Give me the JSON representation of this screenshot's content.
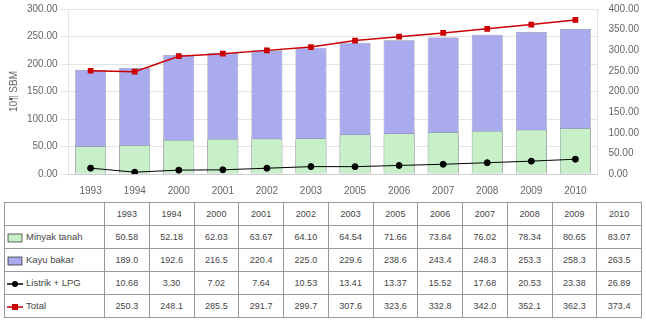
{
  "chart_data": {
    "type": "bar",
    "categories": [
      "1993",
      "1994",
      "2000",
      "2001",
      "2002",
      "2003",
      "2005",
      "2006",
      "2007",
      "2008",
      "2009",
      "2010"
    ],
    "y_label": "10¶ SBM",
    "ylim": [
      0,
      300
    ],
    "yticks": [
      {
        "value": 0,
        "label": "0.00"
      },
      {
        "value": 50,
        "label": "50.00"
      },
      {
        "value": 100,
        "label": "100.00"
      },
      {
        "value": 150,
        "label": "150.00"
      },
      {
        "value": 200,
        "label": "200.00"
      },
      {
        "value": 250,
        "label": "250.00"
      },
      {
        "value": 300,
        "label": "300.00"
      }
    ],
    "y2lim": [
      0,
      400
    ],
    "y2ticks": [
      {
        "value": 0,
        "label": "0.00"
      },
      {
        "value": 50,
        "label": "50.00"
      },
      {
        "value": 100,
        "label": "100.00"
      },
      {
        "value": 150,
        "label": "150.00"
      },
      {
        "value": 200,
        "label": "200.00"
      },
      {
        "value": 250,
        "label": "250.00"
      },
      {
        "value": 300,
        "label": "300.00"
      },
      {
        "value": 350,
        "label": "350.00"
      },
      {
        "value": 400,
        "label": "400.00"
      }
    ],
    "grid": true,
    "legend": "bottom",
    "data_labels": true,
    "series": [
      {
        "name": "Minyak tanah",
        "type": "bar",
        "color": "#c8f0c8",
        "values": [
          50.58,
          52.18,
          62.03,
          63.67,
          64.1,
          64.54,
          71.66,
          73.84,
          76.02,
          78.34,
          80.65,
          83.07
        ],
        "value_labels": [
          "50.58",
          "52.18",
          "62.03",
          "63.67",
          "64.10",
          "64.54",
          "71.66",
          "73.84",
          "76.02",
          "78.34",
          "80.65",
          "83.07"
        ]
      },
      {
        "name": "Kayu bakar",
        "type": "bar",
        "color": "#aaaaee",
        "values": [
          189.0,
          192.6,
          216.5,
          220.4,
          225.0,
          229.6,
          238.6,
          243.4,
          248.3,
          253.3,
          258.3,
          263.5
        ],
        "value_labels": [
          "189.0",
          "192.6",
          "216.5",
          "220.4",
          "225.0",
          "229.6",
          "238.6",
          "243.4",
          "248.3",
          "253.3",
          "258.3",
          "263.5"
        ]
      },
      {
        "name": "Listrik + LPG",
        "type": "line",
        "color": "#000000",
        "marker": "circle",
        "values": [
          10.68,
          3.3,
          7.02,
          7.64,
          10.53,
          13.41,
          13.37,
          15.52,
          17.68,
          20.53,
          23.38,
          26.89
        ],
        "value_labels": [
          "10.68",
          "3.30",
          "7.02",
          "7.64",
          "10.53",
          "13.41",
          "13.37",
          "15.52",
          "17.68",
          "20.53",
          "23.38",
          "26.89"
        ]
      },
      {
        "name": "Total",
        "type": "line",
        "color": "#cc0000",
        "marker": "square",
        "axis": "y2",
        "values": [
          250.3,
          248.1,
          285.5,
          291.7,
          299.7,
          307.6,
          323.6,
          332.8,
          342.0,
          352.1,
          362.3,
          373.4
        ],
        "value_labels": [
          "250.3",
          "248.1",
          "285.5",
          "291.7",
          "299.7",
          "307.6",
          "323.6",
          "332.8",
          "342.0",
          "352.1",
          "362.3",
          "373.4"
        ]
      }
    ]
  }
}
